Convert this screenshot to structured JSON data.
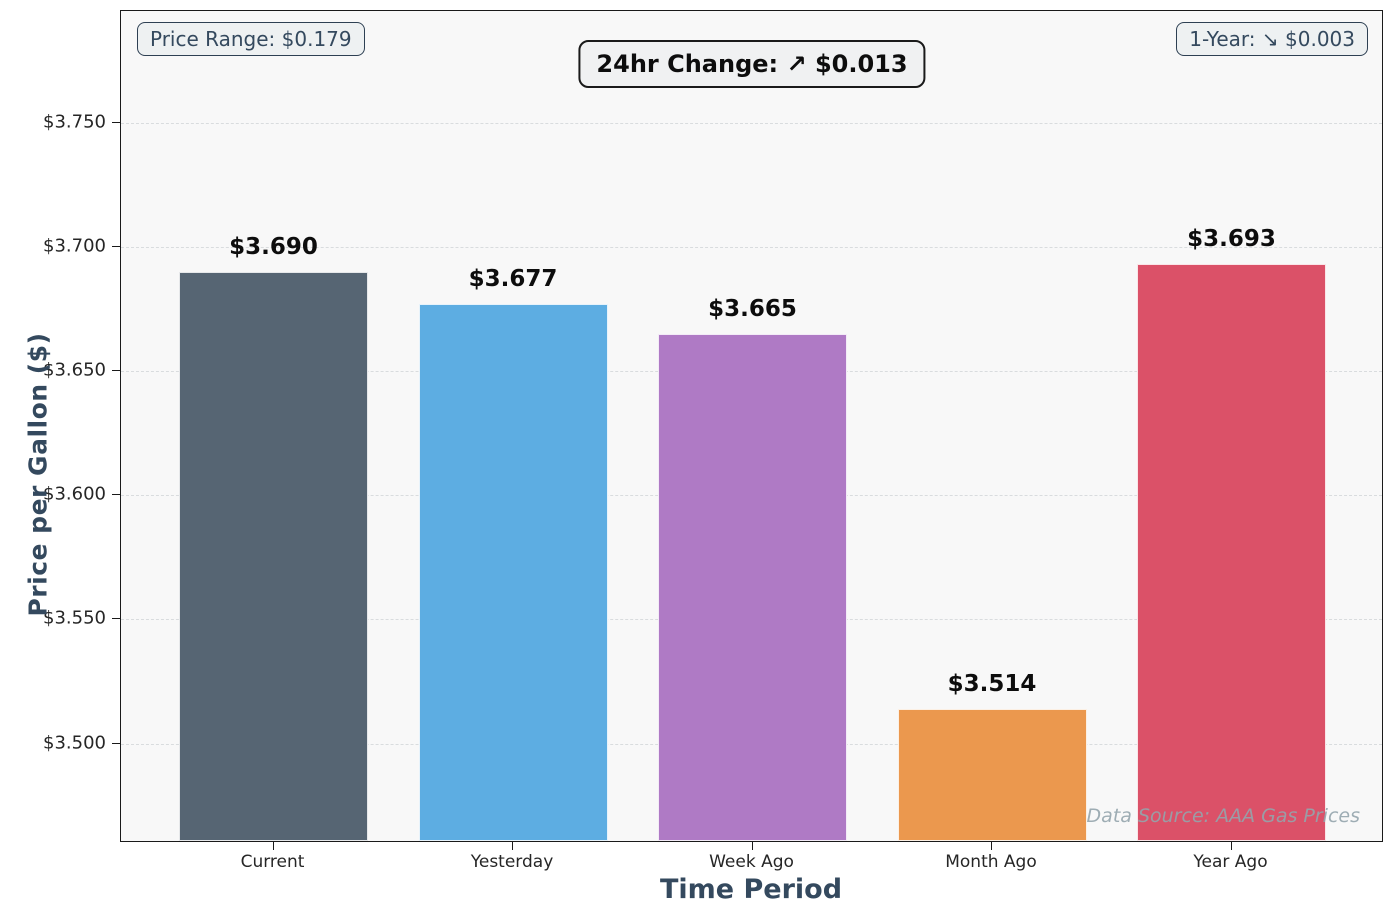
{
  "title_box": {
    "label": "24hr Change: ↗ $0.013"
  },
  "badges": {
    "price_range": "Price Range: $0.179",
    "one_year": "1-Year: ↘ $0.003"
  },
  "watermark": "Data Source: AAA Gas Prices",
  "chart_data": {
    "type": "bar",
    "title": "24hr Change: ↗ $0.013",
    "xlabel": "Time Period",
    "ylabel": "Price per Gallon ($)",
    "categories": [
      "Current",
      "Yesterday",
      "Week Ago",
      "Month Ago",
      "Year Ago"
    ],
    "values": [
      3.69,
      3.677,
      3.665,
      3.514,
      3.693
    ],
    "value_labels": [
      "$3.690",
      "$3.677",
      "$3.665",
      "$3.514",
      "$3.693"
    ],
    "bar_colors": [
      "#566573",
      "#5dade2",
      "#af7ac5",
      "#eb984e",
      "#db5168"
    ],
    "ylim": [
      3.46,
      3.795
    ],
    "yticks": [
      3.5,
      3.55,
      3.6,
      3.65,
      3.7,
      3.75
    ],
    "ytick_labels": [
      "$3.500",
      "$3.550",
      "$3.600",
      "$3.650",
      "$3.700",
      "$3.750"
    ],
    "grid": true,
    "legend": "none",
    "annotations": [
      {
        "text": "Price Range: $0.179",
        "position": "top-left"
      },
      {
        "text": "1-Year: ↘ $0.003",
        "position": "top-right"
      },
      {
        "text": "Data Source: AAA Gas Prices",
        "position": "bottom-right"
      }
    ]
  }
}
